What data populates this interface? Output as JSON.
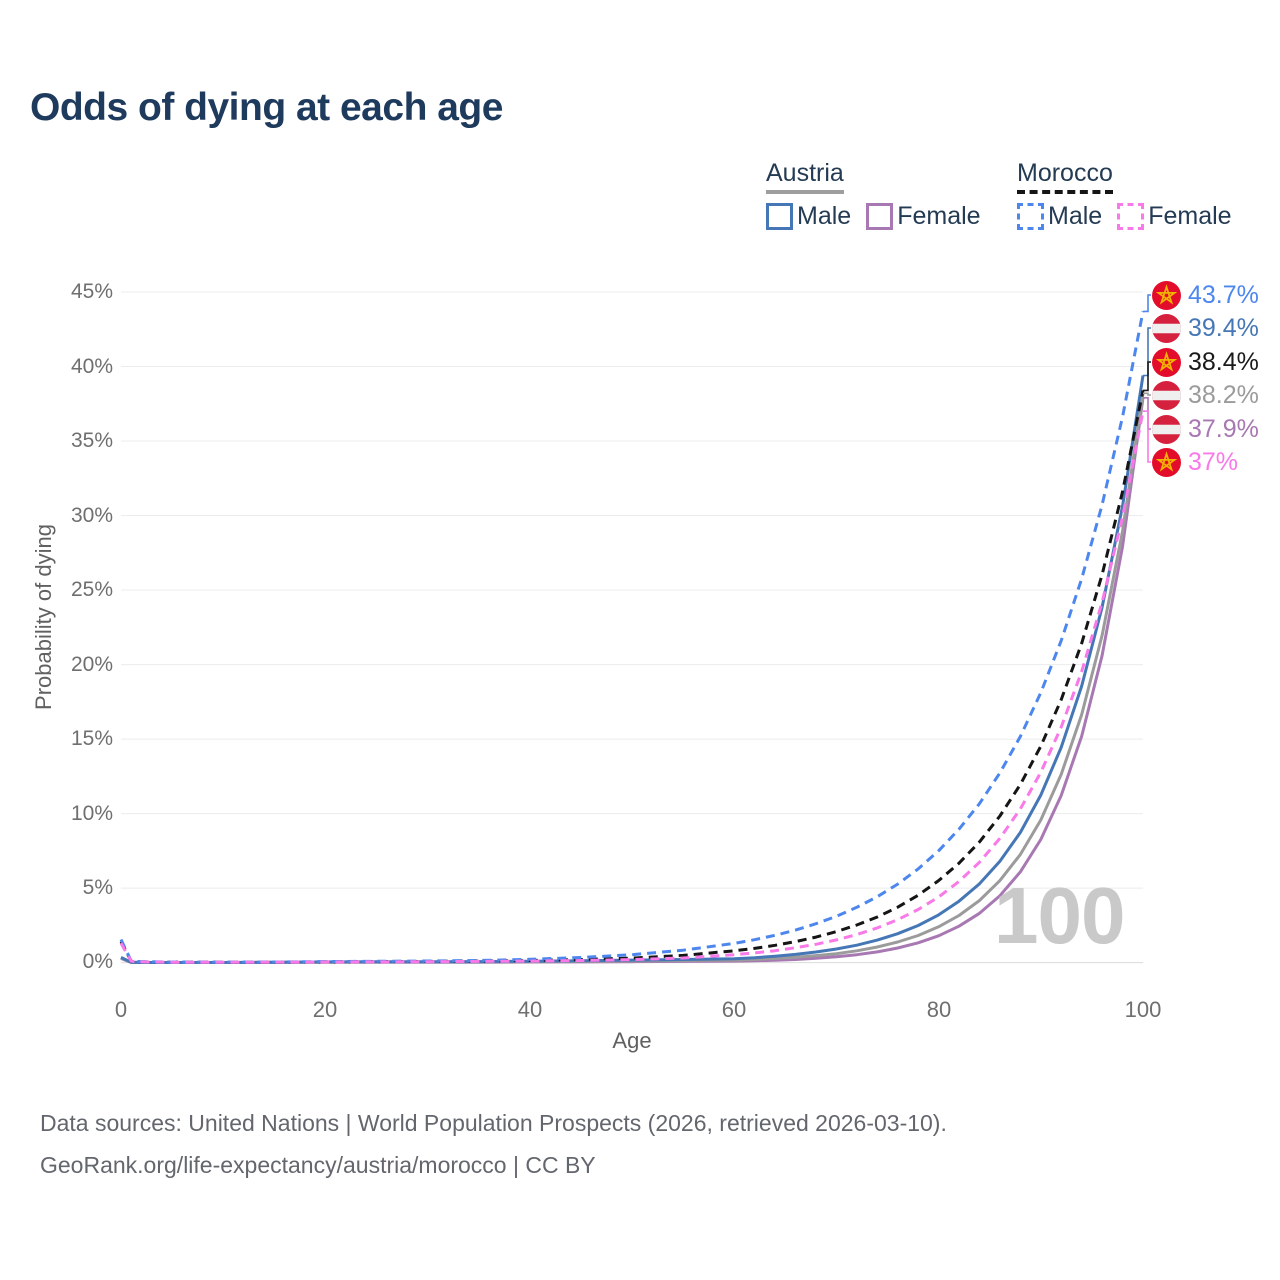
{
  "title": "Odds of dying at each age",
  "legend": {
    "groups": [
      {
        "country": "Austria",
        "line_style": "solid",
        "line_color": "#9e9e9e",
        "items": [
          {
            "label": "Male",
            "line_style": "solid",
            "color": "#4577b6"
          },
          {
            "label": "Female",
            "line_style": "solid",
            "color": "#a878b2"
          }
        ]
      },
      {
        "country": "Morocco",
        "line_style": "dashed",
        "line_color": "#151515",
        "items": [
          {
            "label": "Male",
            "line_style": "dashed",
            "color": "#4d87ee"
          },
          {
            "label": "Female",
            "line_style": "dashed",
            "color": "#f879e7"
          }
        ]
      }
    ]
  },
  "chart_data": {
    "type": "line",
    "title": "Odds of dying at each age",
    "xlabel": "Age",
    "ylabel": "Probability of dying",
    "xlim": [
      0,
      100
    ],
    "ylim": [
      0,
      45
    ],
    "x_ticks": [
      0,
      20,
      40,
      60,
      80,
      100
    ],
    "y_tick_labels": [
      "0%",
      "5%",
      "10%",
      "15%",
      "20%",
      "25%",
      "30%",
      "35%",
      "40%",
      "45%"
    ],
    "grid": "horizontal",
    "legend_position": "top-right",
    "watermark": "100",
    "ages": [
      0,
      1,
      2,
      5,
      10,
      15,
      20,
      25,
      30,
      35,
      40,
      45,
      50,
      55,
      60,
      62,
      64,
      66,
      68,
      70,
      72,
      74,
      76,
      78,
      80,
      82,
      84,
      86,
      88,
      90,
      92,
      94,
      96,
      98,
      100
    ],
    "series": [
      {
        "name": "Austria Female",
        "country": "Austria",
        "sex": "female",
        "style": "solid",
        "color": "#a878b2",
        "end_value_pct": 37.9,
        "values": [
          0.28,
          0.01,
          0.01,
          0.01,
          0.01,
          0.01,
          0.02,
          0.02,
          0.02,
          0.03,
          0.04,
          0.05,
          0.06,
          0.08,
          0.1,
          0.12,
          0.16,
          0.21,
          0.29,
          0.39,
          0.53,
          0.72,
          0.98,
          1.33,
          1.8,
          2.44,
          3.31,
          4.49,
          6.09,
          8.26,
          11.21,
          15.2,
          20.61,
          27.95,
          37.9
        ]
      },
      {
        "name": "Austria Both sexes",
        "country": "Austria",
        "sex": "both",
        "style": "solid",
        "color": "#9b9b9b",
        "end_value_pct": 38.2,
        "values": [
          0.31,
          0.02,
          0.01,
          0.01,
          0.01,
          0.02,
          0.03,
          0.04,
          0.04,
          0.05,
          0.06,
          0.08,
          0.11,
          0.14,
          0.17,
          0.21,
          0.28,
          0.36,
          0.47,
          0.6,
          0.79,
          1.05,
          1.38,
          1.82,
          2.4,
          3.16,
          4.17,
          5.5,
          7.26,
          9.57,
          12.63,
          16.65,
          21.96,
          28.96,
          38.2
        ]
      },
      {
        "name": "Austria Male",
        "country": "Austria",
        "sex": "male",
        "style": "solid",
        "color": "#4577b6",
        "end_value_pct": 39.4,
        "values": [
          0.35,
          0.02,
          0.01,
          0.01,
          0.01,
          0.02,
          0.05,
          0.06,
          0.06,
          0.07,
          0.09,
          0.12,
          0.17,
          0.21,
          0.26,
          0.33,
          0.43,
          0.55,
          0.71,
          0.91,
          1.17,
          1.51,
          1.94,
          2.49,
          3.2,
          4.12,
          5.29,
          6.8,
          8.74,
          11.24,
          14.44,
          18.56,
          23.85,
          30.66,
          39.4
        ]
      },
      {
        "name": "Morocco Both sexes",
        "country": "Morocco",
        "sex": "both",
        "style": "dashed",
        "color": "#151515",
        "end_value_pct": 38.4,
        "values": [
          1.42,
          0.09,
          0.05,
          0.04,
          0.03,
          0.03,
          0.05,
          0.07,
          0.08,
          0.11,
          0.14,
          0.21,
          0.3,
          0.48,
          0.79,
          0.95,
          1.16,
          1.41,
          1.71,
          2.08,
          2.52,
          3.06,
          3.72,
          4.52,
          5.5,
          6.67,
          8.1,
          9.84,
          11.96,
          14.52,
          17.64,
          21.43,
          26.03,
          31.62,
          38.4
        ]
      },
      {
        "name": "Morocco Male",
        "country": "Morocco",
        "sex": "male",
        "style": "dashed",
        "color": "#4d87ee",
        "end_value_pct": 43.7,
        "values": [
          1.55,
          0.1,
          0.06,
          0.04,
          0.03,
          0.04,
          0.07,
          0.09,
          0.11,
          0.14,
          0.22,
          0.34,
          0.53,
          0.83,
          1.29,
          1.54,
          1.83,
          2.18,
          2.61,
          3.11,
          3.71,
          4.42,
          5.27,
          6.29,
          7.5,
          8.95,
          10.67,
          12.73,
          15.18,
          18.11,
          21.6,
          25.76,
          30.72,
          36.64,
          43.7
        ]
      },
      {
        "name": "Morocco Female",
        "country": "Morocco",
        "sex": "female",
        "style": "dashed",
        "color": "#f879e7",
        "end_value_pct": 37.0,
        "values": [
          1.3,
          0.09,
          0.05,
          0.03,
          0.03,
          0.03,
          0.04,
          0.05,
          0.06,
          0.08,
          0.1,
          0.14,
          0.2,
          0.31,
          0.53,
          0.65,
          0.8,
          1.0,
          1.23,
          1.52,
          1.88,
          2.33,
          2.88,
          3.56,
          4.4,
          5.45,
          6.74,
          8.34,
          10.32,
          12.77,
          15.8,
          19.54,
          24.18,
          29.91,
          37.0
        ]
      }
    ]
  },
  "end_labels": [
    {
      "value": "43.7%",
      "country": "Morocco",
      "sex": "Male",
      "flag": "morocco",
      "color": "#4d87ee"
    },
    {
      "value": "39.4%",
      "country": "Austria",
      "sex": "Male",
      "flag": "austria",
      "color": "#4577b6"
    },
    {
      "value": "38.4%",
      "country": "Morocco",
      "sex": "Both sexes",
      "flag": "morocco",
      "color": "#1a1a1a"
    },
    {
      "value": "38.2%",
      "country": "Austria",
      "sex": "Both sexes",
      "flag": "austria",
      "color": "#9b9b9b"
    },
    {
      "value": "37.9%",
      "country": "Austria",
      "sex": "Female",
      "flag": "austria",
      "color": "#a878b2"
    },
    {
      "value": "37%",
      "country": "Morocco",
      "sex": "Female",
      "flag": "morocco",
      "color": "#f879e7"
    }
  ],
  "footer": {
    "line1": "Data sources: United Nations | World Population Prospects (2026, retrieved 2026-03-10).",
    "line2": "GeoRank.org/life-expectancy/austria/morocco | CC BY"
  }
}
